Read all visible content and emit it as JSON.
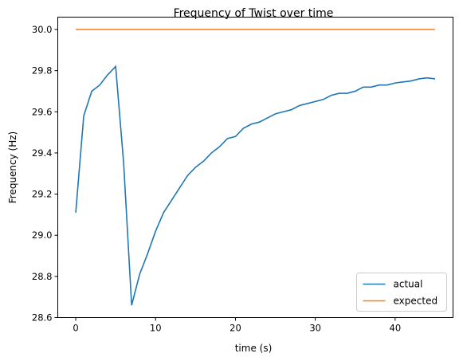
{
  "chart_data": {
    "type": "line",
    "title": "Frequency of Twist over time",
    "xlabel": "time (s)",
    "ylabel": "Frequency (Hz)",
    "xlim": [
      -2.25,
      47.25
    ],
    "ylim": [
      28.6,
      30.06
    ],
    "xticks": [
      0,
      10,
      20,
      30,
      40
    ],
    "yticks": [
      28.6,
      28.8,
      29.0,
      29.2,
      29.4,
      29.6,
      29.8,
      30.0
    ],
    "grid": false,
    "legend_position": "lower right",
    "series": [
      {
        "name": "actual",
        "color": "#1f77b4",
        "x": [
          0,
          1,
          2,
          3,
          4,
          5,
          6,
          7,
          8,
          9,
          10,
          11,
          12,
          13,
          14,
          15,
          16,
          17,
          18,
          19,
          20,
          21,
          22,
          23,
          24,
          25,
          26,
          27,
          28,
          29,
          30,
          31,
          32,
          33,
          34,
          35,
          36,
          37,
          38,
          39,
          40,
          41,
          42,
          43,
          44,
          45
        ],
        "y": [
          29.11,
          29.58,
          29.7,
          29.73,
          29.78,
          29.82,
          29.35,
          28.66,
          28.81,
          28.91,
          29.02,
          29.11,
          29.17,
          29.23,
          29.29,
          29.33,
          29.36,
          29.4,
          29.43,
          29.47,
          29.48,
          29.52,
          29.54,
          29.55,
          29.57,
          29.59,
          29.6,
          29.61,
          29.63,
          29.64,
          29.65,
          29.66,
          29.68,
          29.69,
          29.69,
          29.7,
          29.72,
          29.72,
          29.73,
          29.73,
          29.74,
          29.745,
          29.75,
          29.76,
          29.765,
          29.76
        ]
      },
      {
        "name": "expected",
        "color": "#ff7f0e",
        "x": [
          0,
          45
        ],
        "y": [
          30.0,
          30.0
        ]
      }
    ]
  }
}
